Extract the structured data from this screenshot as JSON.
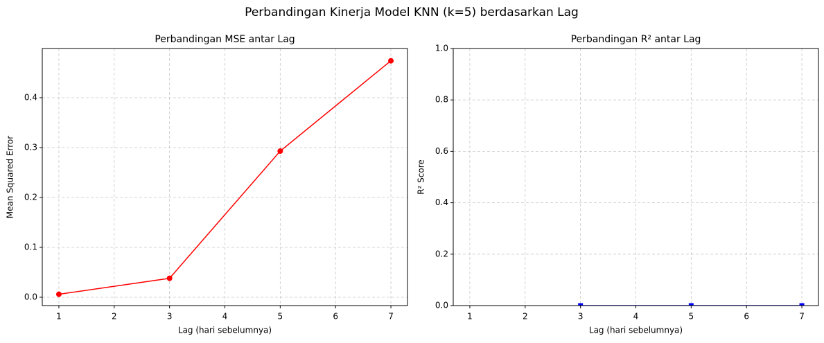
{
  "title": "Perbandingan Kinerja Model KNN (k=5) berdasarkan Lag",
  "chart_data": [
    {
      "type": "line",
      "title": "Perbandingan MSE antar Lag",
      "x_label": "Lag (hari sebelumnya)",
      "y_label": "Mean Squared Error",
      "x": [
        1,
        3,
        5,
        7
      ],
      "series": [
        {
          "name": "MSE",
          "color": "#ff0000",
          "marker": "circle",
          "values": [
            0.006,
            0.038,
            0.293,
            0.474
          ]
        }
      ],
      "xlim": [
        0.7,
        7.3
      ],
      "xticks": [
        1,
        2,
        3,
        4,
        5,
        6,
        7
      ],
      "ylim": [
        -0.0167,
        0.4986
      ],
      "yticks": [
        {
          "value": 0,
          "label": "0.0"
        },
        {
          "value": 0.1,
          "label": "0.1"
        },
        {
          "value": 0.2,
          "label": "0.2"
        },
        {
          "value": 0.3,
          "label": "0.3"
        },
        {
          "value": 0.4,
          "label": "0.4"
        }
      ],
      "grid": true
    },
    {
      "type": "line",
      "title": "Perbandingan R² antar Lag",
      "x_label": "Lag (hari sebelumnya)",
      "y_label": "R² Score",
      "x": [
        1,
        3,
        5,
        7
      ],
      "series": [
        {
          "name": "R²",
          "color": "#0000ff",
          "marker": "square",
          "values": [
            null,
            0,
            0,
            0
          ]
        }
      ],
      "xlim": [
        0.7,
        7.3
      ],
      "xticks": [
        1,
        2,
        3,
        4,
        5,
        6,
        7
      ],
      "ylim": [
        0,
        1
      ],
      "yticks": [
        {
          "value": 0,
          "label": "0.0"
        },
        {
          "value": 0.2,
          "label": "0.2"
        },
        {
          "value": 0.4,
          "label": "0.4"
        },
        {
          "value": 0.6,
          "label": "0.6"
        },
        {
          "value": 0.8,
          "label": "0.8"
        },
        {
          "value": 1,
          "label": "1.0"
        }
      ],
      "grid": true
    }
  ]
}
